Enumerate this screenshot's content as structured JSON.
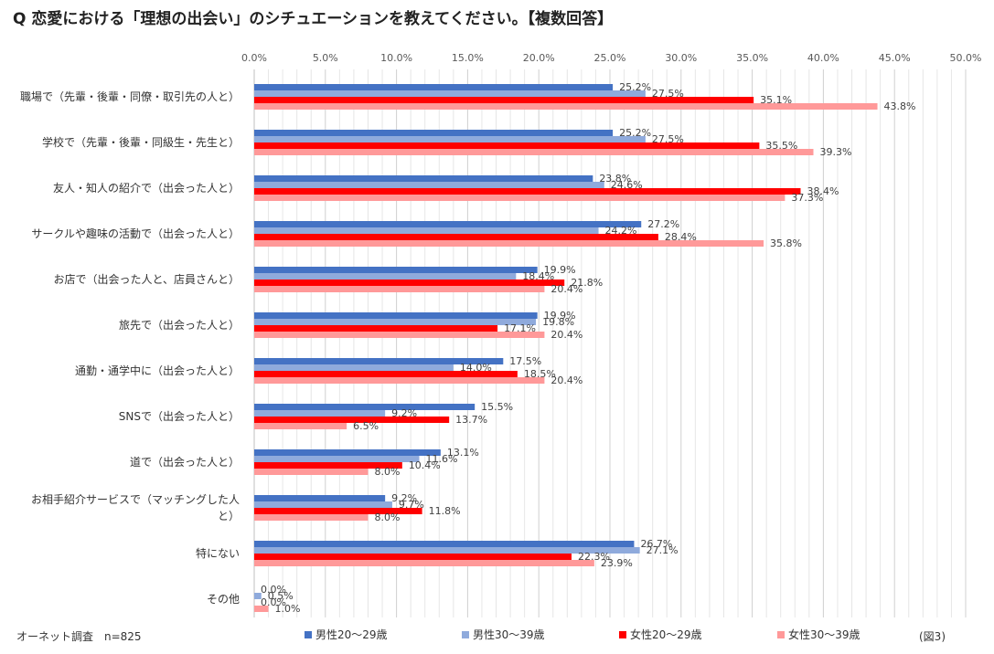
{
  "header": {
    "title": "Q 恋愛における「理想の出会い」のシチュエーションを教えてください。【複数回答】"
  },
  "footer": {
    "source": "オーネット調査　n=825",
    "figure": "(図3)"
  },
  "chart_data": {
    "type": "bar",
    "orientation": "horizontal",
    "title": "Q 恋愛における「理想の出会い」のシチュエーションを教えてください。【複数回答】",
    "xlim": [
      0,
      50
    ],
    "ticks": [
      "0.0%",
      "5.0%",
      "10.0%",
      "15.0%",
      "20.0%",
      "25.0%",
      "30.0%",
      "35.0%",
      "40.0%",
      "45.0%",
      "50.0%"
    ],
    "categories": [
      [
        "職場で（先輩・後輩・同僚・取引先の人と）"
      ],
      [
        "学校で（先輩・後輩・同級生・先生と）"
      ],
      [
        "友人・知人の紹介で（出会った人と）"
      ],
      [
        "サークルや趣味の活動で（出会った人と）"
      ],
      [
        "お店で（出会った人と、店員さんと）"
      ],
      [
        "旅先で（出会った人と）"
      ],
      [
        "通勤・通学中に（出会った人と）"
      ],
      [
        "SNSで（出会った人と）"
      ],
      [
        "道で（出会った人と）"
      ],
      [
        "お相手紹介サービスで（マッチングした人",
        "と）"
      ],
      [
        "特にない"
      ],
      [
        "その他"
      ]
    ],
    "series": [
      {
        "name": "男性20〜29歳",
        "color": "#4472c4",
        "values": [
          25.2,
          25.2,
          23.8,
          27.2,
          19.9,
          19.9,
          17.5,
          15.5,
          13.1,
          9.2,
          26.7,
          0.0
        ],
        "labels": [
          "25.2%",
          "25.2%",
          "23.8%",
          "27.2%",
          "19.9%",
          "19.9%",
          "17.5%",
          "15.5%",
          "13.1%",
          "9.2%",
          "26.7%",
          "0.0%"
        ]
      },
      {
        "name": "男性30〜39歳",
        "color": "#8faadc",
        "values": [
          27.5,
          27.5,
          24.6,
          24.2,
          18.4,
          19.8,
          14.0,
          9.2,
          11.6,
          9.7,
          27.1,
          0.5
        ],
        "labels": [
          "27.5%",
          "27.5%",
          "24.6%",
          "24.2%",
          "18.4%",
          "19.8%",
          "14.0%",
          "9.2%",
          "11.6%",
          "9.7%",
          "27.1%",
          "0.5%"
        ]
      },
      {
        "name": "女性20〜29歳",
        "color": "#ff0000",
        "values": [
          35.1,
          35.5,
          38.4,
          28.4,
          21.8,
          17.1,
          18.5,
          13.7,
          10.4,
          11.8,
          22.3,
          0.0
        ],
        "labels": [
          "35.1%",
          "35.5%",
          "38.4%",
          "28.4%",
          "21.8%",
          "17.1%",
          "18.5%",
          "13.7%",
          "10.4%",
          "11.8%",
          "22.3%",
          "0.0%"
        ]
      },
      {
        "name": "女性30〜39歳",
        "color": "#ff9999",
        "values": [
          43.8,
          39.3,
          37.3,
          35.8,
          20.4,
          20.4,
          20.4,
          6.5,
          8.0,
          8.0,
          23.9,
          1.0
        ],
        "labels": [
          "43.8%",
          "39.3%",
          "37.3%",
          "35.8%",
          "20.4%",
          "20.4%",
          "20.4%",
          "6.5%",
          "8.0%",
          "8.0%",
          "23.9%",
          "1.0%"
        ]
      }
    ],
    "grid": true,
    "legend_position": "bottom"
  }
}
